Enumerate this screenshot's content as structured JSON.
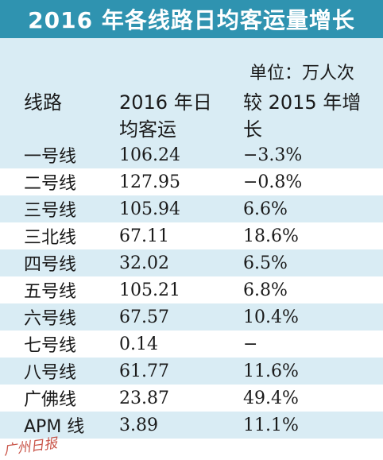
{
  "title": "2016 年各线路日均客运量增长",
  "unit_note": "单位：万人次",
  "headers": {
    "route": "线路",
    "daily": "2016 年日均客运",
    "growth": "较 2015 年增长"
  },
  "rows": [
    {
      "route": "一号线",
      "daily": "106.24",
      "growth": "−3.3%"
    },
    {
      "route": "二号线",
      "daily": "127.95",
      "growth": "−0.8%"
    },
    {
      "route": "三号线",
      "daily": "105.94",
      "growth": "6.6%"
    },
    {
      "route": "三北线",
      "daily": "67.11",
      "growth": "18.6%"
    },
    {
      "route": "四号线",
      "daily": "32.02",
      "growth": "6.5%"
    },
    {
      "route": "五号线",
      "daily": "105.21",
      "growth": "6.8%"
    },
    {
      "route": "六号线",
      "daily": "67.57",
      "growth": "10.4%"
    },
    {
      "route": "七号线",
      "daily": "0.14",
      "growth": "−"
    },
    {
      "route": "八号线",
      "daily": "61.77",
      "growth": "11.6%"
    },
    {
      "route": "广佛线",
      "daily": "23.87",
      "growth": "49.4%"
    },
    {
      "route": "APM 线",
      "daily": "3.89",
      "growth": "11.1%"
    }
  ],
  "watermark": "广州日报"
}
